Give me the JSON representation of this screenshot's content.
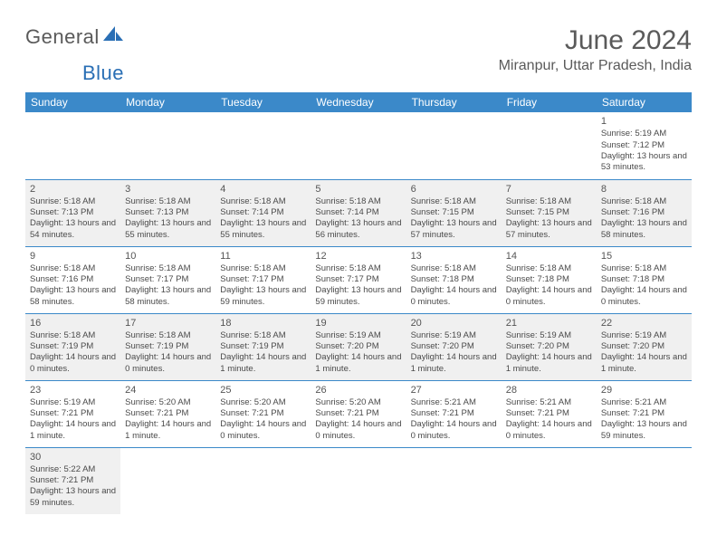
{
  "logo": {
    "part1": "General",
    "part2": "Blue",
    "sail_color": "#2a6fb5"
  },
  "header": {
    "title": "June 2024",
    "location": "Miranpur, Uttar Pradesh, India"
  },
  "colors": {
    "header_bg": "#3b89c9",
    "header_text": "#ffffff",
    "rule": "#3b89c9",
    "alt_row": "#f0f0f0"
  },
  "daynames": [
    "Sunday",
    "Monday",
    "Tuesday",
    "Wednesday",
    "Thursday",
    "Friday",
    "Saturday"
  ],
  "weeks": [
    [
      null,
      null,
      null,
      null,
      null,
      null,
      {
        "n": "1",
        "sunrise": "Sunrise: 5:19 AM",
        "sunset": "Sunset: 7:12 PM",
        "day": "Daylight: 13 hours and 53 minutes."
      }
    ],
    [
      {
        "n": "2",
        "sunrise": "Sunrise: 5:18 AM",
        "sunset": "Sunset: 7:13 PM",
        "day": "Daylight: 13 hours and 54 minutes."
      },
      {
        "n": "3",
        "sunrise": "Sunrise: 5:18 AM",
        "sunset": "Sunset: 7:13 PM",
        "day": "Daylight: 13 hours and 55 minutes."
      },
      {
        "n": "4",
        "sunrise": "Sunrise: 5:18 AM",
        "sunset": "Sunset: 7:14 PM",
        "day": "Daylight: 13 hours and 55 minutes."
      },
      {
        "n": "5",
        "sunrise": "Sunrise: 5:18 AM",
        "sunset": "Sunset: 7:14 PM",
        "day": "Daylight: 13 hours and 56 minutes."
      },
      {
        "n": "6",
        "sunrise": "Sunrise: 5:18 AM",
        "sunset": "Sunset: 7:15 PM",
        "day": "Daylight: 13 hours and 57 minutes."
      },
      {
        "n": "7",
        "sunrise": "Sunrise: 5:18 AM",
        "sunset": "Sunset: 7:15 PM",
        "day": "Daylight: 13 hours and 57 minutes."
      },
      {
        "n": "8",
        "sunrise": "Sunrise: 5:18 AM",
        "sunset": "Sunset: 7:16 PM",
        "day": "Daylight: 13 hours and 58 minutes."
      }
    ],
    [
      {
        "n": "9",
        "sunrise": "Sunrise: 5:18 AM",
        "sunset": "Sunset: 7:16 PM",
        "day": "Daylight: 13 hours and 58 minutes."
      },
      {
        "n": "10",
        "sunrise": "Sunrise: 5:18 AM",
        "sunset": "Sunset: 7:17 PM",
        "day": "Daylight: 13 hours and 58 minutes."
      },
      {
        "n": "11",
        "sunrise": "Sunrise: 5:18 AM",
        "sunset": "Sunset: 7:17 PM",
        "day": "Daylight: 13 hours and 59 minutes."
      },
      {
        "n": "12",
        "sunrise": "Sunrise: 5:18 AM",
        "sunset": "Sunset: 7:17 PM",
        "day": "Daylight: 13 hours and 59 minutes."
      },
      {
        "n": "13",
        "sunrise": "Sunrise: 5:18 AM",
        "sunset": "Sunset: 7:18 PM",
        "day": "Daylight: 14 hours and 0 minutes."
      },
      {
        "n": "14",
        "sunrise": "Sunrise: 5:18 AM",
        "sunset": "Sunset: 7:18 PM",
        "day": "Daylight: 14 hours and 0 minutes."
      },
      {
        "n": "15",
        "sunrise": "Sunrise: 5:18 AM",
        "sunset": "Sunset: 7:18 PM",
        "day": "Daylight: 14 hours and 0 minutes."
      }
    ],
    [
      {
        "n": "16",
        "sunrise": "Sunrise: 5:18 AM",
        "sunset": "Sunset: 7:19 PM",
        "day": "Daylight: 14 hours and 0 minutes."
      },
      {
        "n": "17",
        "sunrise": "Sunrise: 5:18 AM",
        "sunset": "Sunset: 7:19 PM",
        "day": "Daylight: 14 hours and 0 minutes."
      },
      {
        "n": "18",
        "sunrise": "Sunrise: 5:18 AM",
        "sunset": "Sunset: 7:19 PM",
        "day": "Daylight: 14 hours and 1 minute."
      },
      {
        "n": "19",
        "sunrise": "Sunrise: 5:19 AM",
        "sunset": "Sunset: 7:20 PM",
        "day": "Daylight: 14 hours and 1 minute."
      },
      {
        "n": "20",
        "sunrise": "Sunrise: 5:19 AM",
        "sunset": "Sunset: 7:20 PM",
        "day": "Daylight: 14 hours and 1 minute."
      },
      {
        "n": "21",
        "sunrise": "Sunrise: 5:19 AM",
        "sunset": "Sunset: 7:20 PM",
        "day": "Daylight: 14 hours and 1 minute."
      },
      {
        "n": "22",
        "sunrise": "Sunrise: 5:19 AM",
        "sunset": "Sunset: 7:20 PM",
        "day": "Daylight: 14 hours and 1 minute."
      }
    ],
    [
      {
        "n": "23",
        "sunrise": "Sunrise: 5:19 AM",
        "sunset": "Sunset: 7:21 PM",
        "day": "Daylight: 14 hours and 1 minute."
      },
      {
        "n": "24",
        "sunrise": "Sunrise: 5:20 AM",
        "sunset": "Sunset: 7:21 PM",
        "day": "Daylight: 14 hours and 1 minute."
      },
      {
        "n": "25",
        "sunrise": "Sunrise: 5:20 AM",
        "sunset": "Sunset: 7:21 PM",
        "day": "Daylight: 14 hours and 0 minutes."
      },
      {
        "n": "26",
        "sunrise": "Sunrise: 5:20 AM",
        "sunset": "Sunset: 7:21 PM",
        "day": "Daylight: 14 hours and 0 minutes."
      },
      {
        "n": "27",
        "sunrise": "Sunrise: 5:21 AM",
        "sunset": "Sunset: 7:21 PM",
        "day": "Daylight: 14 hours and 0 minutes."
      },
      {
        "n": "28",
        "sunrise": "Sunrise: 5:21 AM",
        "sunset": "Sunset: 7:21 PM",
        "day": "Daylight: 14 hours and 0 minutes."
      },
      {
        "n": "29",
        "sunrise": "Sunrise: 5:21 AM",
        "sunset": "Sunset: 7:21 PM",
        "day": "Daylight: 13 hours and 59 minutes."
      }
    ],
    [
      {
        "n": "30",
        "sunrise": "Sunrise: 5:22 AM",
        "sunset": "Sunset: 7:21 PM",
        "day": "Daylight: 13 hours and 59 minutes."
      },
      null,
      null,
      null,
      null,
      null,
      null
    ]
  ]
}
